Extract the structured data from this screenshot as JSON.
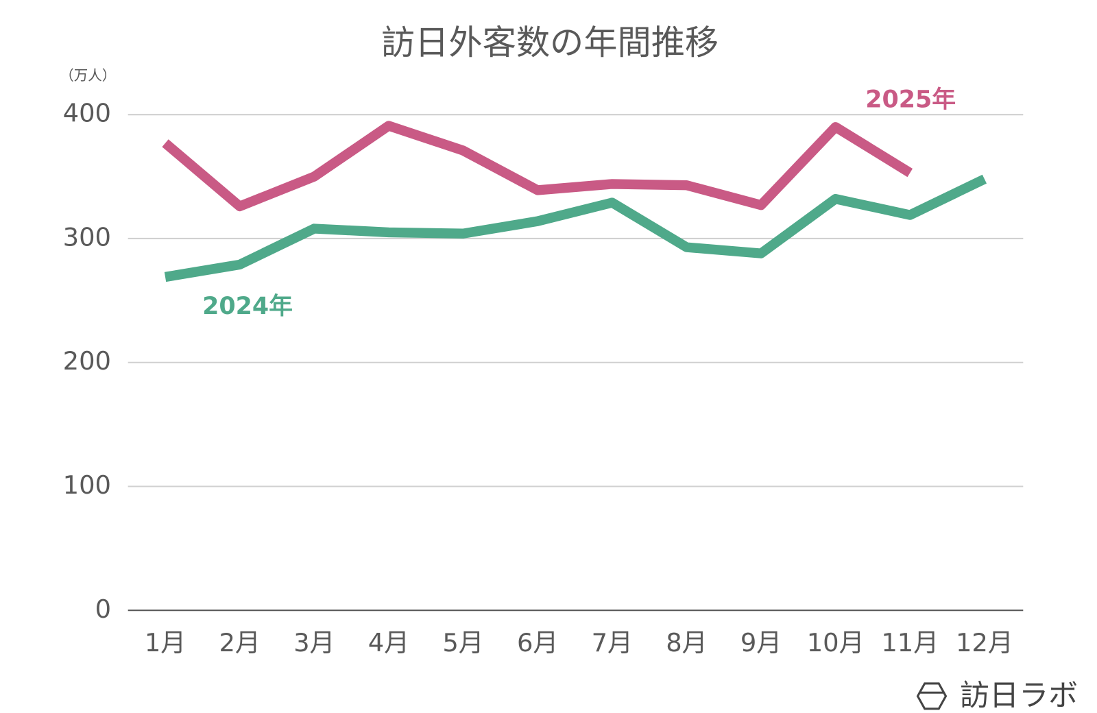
{
  "chart_data": {
    "type": "line",
    "title": "訪日外客数の年間推移",
    "y_unit": "（万人）",
    "categories": [
      "1月",
      "2月",
      "3月",
      "4月",
      "5月",
      "6月",
      "7月",
      "8月",
      "9月",
      "10月",
      "11月",
      "12月"
    ],
    "series": [
      {
        "name": "2024年",
        "color": "#4fa98a",
        "values": [
          269,
          279,
          308,
          305,
          304,
          314,
          329,
          293,
          288,
          332,
          319,
          348
        ]
      },
      {
        "name": "2025年",
        "color": "#c95a85",
        "values": [
          377,
          326,
          350,
          391,
          371,
          339,
          344,
          343,
          327,
          390,
          353,
          null
        ]
      }
    ],
    "ylim": [
      0,
      400
    ],
    "yticks": [
      0,
      100,
      200,
      300,
      400
    ],
    "grid": true,
    "watermark": "訪日ラボ"
  }
}
